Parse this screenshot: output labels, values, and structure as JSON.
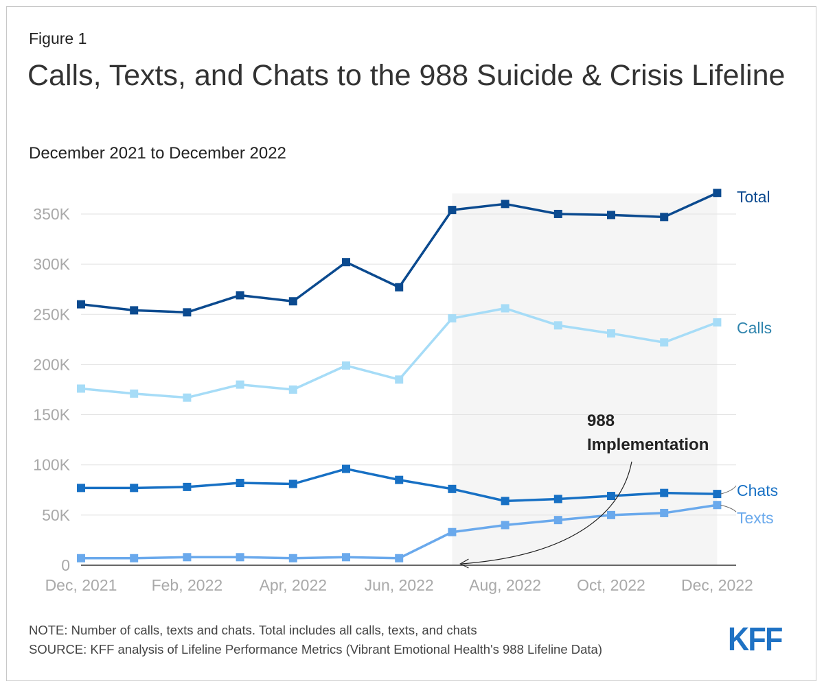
{
  "figure_label": "Figure 1",
  "title": "Calls, Texts, and Chats to the 988 Suicide & Crisis Lifeline",
  "subtitle": "December 2021 to December 2022",
  "note": "NOTE: Number of calls, texts and chats. Total includes all calls, texts, and chats",
  "source": "SOURCE: KFF analysis of Lifeline Performance Metrics (Vibrant Emotional Health's 988 Lifeline Data)",
  "logo_text": "KFF",
  "colors": {
    "total": "#0b4a8f",
    "calls": "#a6dcf7",
    "chats": "#1770c4",
    "texts": "#6aa9ec",
    "shade": "#f5f5f5",
    "grid": "#e2e2e2",
    "tick": "#a9a9a9"
  },
  "chart_data": {
    "type": "line",
    "x": [
      "Dec, 2021",
      "Jan, 2022",
      "Feb, 2022",
      "Mar, 2022",
      "Apr, 2022",
      "May, 2022",
      "Jun, 2022",
      "Jul, 2022",
      "Aug, 2022",
      "Sep, 2022",
      "Oct, 2022",
      "Nov, 2022",
      "Dec, 2022"
    ],
    "x_tick_labels": [
      "Dec, 2021",
      "Feb, 2022",
      "Apr, 2022",
      "Jun, 2022",
      "Aug, 2022",
      "Oct, 2022",
      "Dec, 2022"
    ],
    "y_tick_values": [
      0,
      50000,
      100000,
      150000,
      200000,
      250000,
      300000,
      350000
    ],
    "y_tick_labels": [
      "0",
      "50K",
      "100K",
      "150K",
      "200K",
      "250K",
      "300K",
      "350K"
    ],
    "ylim": [
      0,
      370000
    ],
    "series": [
      {
        "name": "Total",
        "color_key": "total",
        "values": [
          260000,
          254000,
          252000,
          269000,
          263000,
          302000,
          277000,
          354000,
          360000,
          350000,
          349000,
          347000,
          371000
        ]
      },
      {
        "name": "Calls",
        "color_key": "calls",
        "values": [
          176000,
          171000,
          167000,
          180000,
          175000,
          199000,
          185000,
          246000,
          256000,
          239000,
          231000,
          222000,
          242000
        ]
      },
      {
        "name": "Chats",
        "color_key": "chats",
        "values": [
          77000,
          77000,
          78000,
          82000,
          81000,
          96000,
          85000,
          76000,
          64000,
          66000,
          69000,
          72000,
          71000
        ]
      },
      {
        "name": "Texts",
        "color_key": "texts",
        "values": [
          7000,
          7000,
          8000,
          8000,
          7000,
          8000,
          7000,
          33000,
          40000,
          45000,
          50000,
          52000,
          60000
        ]
      }
    ],
    "shaded_region": {
      "from": "Jul, 2022",
      "to": "Dec, 2022"
    },
    "annotation": {
      "line1": "988",
      "line2": "Implementation",
      "points_to": "Jul, 2022"
    }
  }
}
